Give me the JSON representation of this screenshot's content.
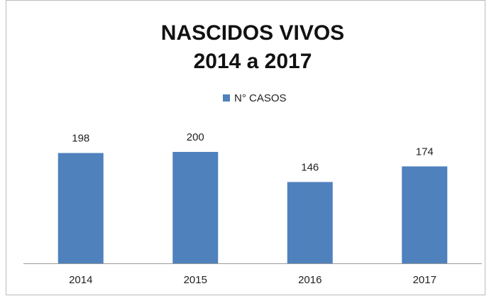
{
  "chart_data": {
    "type": "bar",
    "title": "NASCIDOS VIVOS",
    "subtitle": "2014 a 2017",
    "categories": [
      "2014",
      "2015",
      "2016",
      "2017"
    ],
    "series": [
      {
        "name": "N° CASOS",
        "color": "#4f81bd",
        "values": [
          198,
          200,
          146,
          174
        ]
      }
    ]
  }
}
